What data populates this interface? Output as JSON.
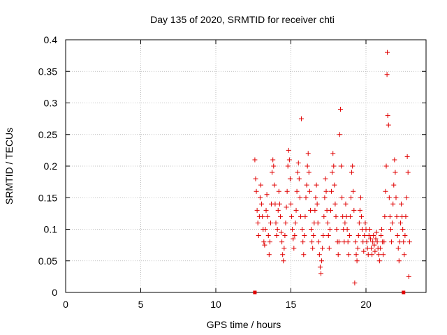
{
  "chart_data": {
    "type": "scatter",
    "title": "Day 135 of 2020, SRMTID for receiver chti",
    "xlabel": "GPS time / hours",
    "ylabel": "SRMTID / TECUs",
    "xlim": [
      0,
      24
    ],
    "ylim": [
      0,
      0.4
    ],
    "xticks": [
      0,
      5,
      10,
      15,
      20
    ],
    "xtick_labels": [
      "0",
      "5",
      "10",
      "15",
      "20"
    ],
    "yticks": [
      0,
      0.05,
      0.1,
      0.15,
      0.2,
      0.25,
      0.3,
      0.35,
      0.4
    ],
    "ytick_labels": [
      "0",
      "0.05",
      "0.1",
      "0.15",
      "0.2",
      "0.25",
      "0.3",
      "0.35",
      "0.4"
    ],
    "grid": true,
    "marker": "plus",
    "color": "#e00000",
    "series": [
      {
        "name": "SRMTID",
        "points": [
          [
            12.6,
            0.21
          ],
          [
            12.65,
            0.18
          ],
          [
            12.7,
            0.16
          ],
          [
            12.75,
            0.13
          ],
          [
            12.8,
            0.11
          ],
          [
            12.85,
            0.09
          ],
          [
            12.9,
            0.12
          ],
          [
            12.95,
            0.15
          ],
          [
            13.0,
            0.17
          ],
          [
            13.05,
            0.14
          ],
          [
            13.1,
            0.12
          ],
          [
            13.15,
            0.1
          ],
          [
            13.2,
            0.08
          ],
          [
            13.25,
            0.075
          ],
          [
            13.3,
            0.1
          ],
          [
            13.35,
            0.13
          ],
          [
            13.4,
            0.155
          ],
          [
            13.45,
            0.12
          ],
          [
            13.5,
            0.09
          ],
          [
            13.55,
            0.06
          ],
          [
            13.6,
            0.08
          ],
          [
            13.65,
            0.11
          ],
          [
            13.7,
            0.14
          ],
          [
            13.75,
            0.19
          ],
          [
            13.8,
            0.21
          ],
          [
            13.85,
            0.2
          ],
          [
            13.9,
            0.17
          ],
          [
            13.95,
            0.14
          ],
          [
            14.0,
            0.11
          ],
          [
            14.05,
            0.09
          ],
          [
            14.1,
            0.1
          ],
          [
            14.15,
            0.13
          ],
          [
            14.2,
            0.16
          ],
          [
            14.25,
            0.14
          ],
          [
            14.3,
            0.12
          ],
          [
            14.35,
            0.095
          ],
          [
            14.4,
            0.08
          ],
          [
            14.45,
            0.06
          ],
          [
            14.5,
            0.05
          ],
          [
            14.55,
            0.07
          ],
          [
            14.6,
            0.09
          ],
          [
            14.65,
            0.11
          ],
          [
            14.7,
            0.135
          ],
          [
            14.75,
            0.16
          ],
          [
            14.8,
            0.2
          ],
          [
            14.85,
            0.225
          ],
          [
            14.9,
            0.21
          ],
          [
            14.95,
            0.18
          ],
          [
            15.0,
            0.14
          ],
          [
            15.05,
            0.12
          ],
          [
            15.1,
            0.1
          ],
          [
            15.15,
            0.085
          ],
          [
            15.2,
            0.07
          ],
          [
            15.25,
            0.09
          ],
          [
            15.3,
            0.11
          ],
          [
            15.35,
            0.13
          ],
          [
            15.4,
            0.16
          ],
          [
            15.45,
            0.19
          ],
          [
            15.5,
            0.205
          ],
          [
            15.55,
            0.18
          ],
          [
            15.6,
            0.15
          ],
          [
            15.65,
            0.12
          ],
          [
            15.7,
            0.275
          ],
          [
            15.75,
            0.1
          ],
          [
            15.8,
            0.08
          ],
          [
            15.85,
            0.06
          ],
          [
            15.9,
            0.09
          ],
          [
            15.95,
            0.12
          ],
          [
            16.0,
            0.15
          ],
          [
            16.05,
            0.17
          ],
          [
            16.1,
            0.2
          ],
          [
            16.15,
            0.22
          ],
          [
            16.2,
            0.19
          ],
          [
            16.25,
            0.16
          ],
          [
            16.3,
            0.13
          ],
          [
            16.35,
            0.1
          ],
          [
            16.4,
            0.08
          ],
          [
            16.45,
            0.07
          ],
          [
            16.5,
            0.09
          ],
          [
            16.55,
            0.11
          ],
          [
            16.6,
            0.13
          ],
          [
            16.65,
            0.15
          ],
          [
            16.7,
            0.17
          ],
          [
            16.75,
            0.14
          ],
          [
            16.8,
            0.11
          ],
          [
            16.85,
            0.08
          ],
          [
            16.9,
            0.06
          ],
          [
            16.95,
            0.04
          ],
          [
            17.0,
            0.03
          ],
          [
            17.05,
            0.05
          ],
          [
            17.1,
            0.07
          ],
          [
            17.15,
            0.09
          ],
          [
            17.2,
            0.12
          ],
          [
            17.25,
            0.15
          ],
          [
            17.3,
            0.18
          ],
          [
            17.35,
            0.16
          ],
          [
            17.4,
            0.13
          ],
          [
            17.45,
            0.11
          ],
          [
            17.5,
            0.09
          ],
          [
            17.55,
            0.07
          ],
          [
            17.6,
            0.1
          ],
          [
            17.65,
            0.13
          ],
          [
            17.7,
            0.16
          ],
          [
            17.75,
            0.19
          ],
          [
            17.8,
            0.22
          ],
          [
            17.85,
            0.2
          ],
          [
            17.9,
            0.17
          ],
          [
            17.95,
            0.14
          ],
          [
            18.0,
            0.12
          ],
          [
            18.05,
            0.1
          ],
          [
            18.1,
            0.08
          ],
          [
            18.15,
            0.06
          ],
          [
            18.2,
            0.08
          ],
          [
            18.25,
            0.25
          ],
          [
            18.3,
            0.29
          ],
          [
            18.35,
            0.2
          ],
          [
            18.4,
            0.15
          ],
          [
            18.45,
            0.12
          ],
          [
            18.5,
            0.1
          ],
          [
            18.55,
            0.08
          ],
          [
            18.6,
            0.11
          ],
          [
            18.65,
            0.14
          ],
          [
            18.7,
            0.12
          ],
          [
            18.75,
            0.1
          ],
          [
            18.8,
            0.08
          ],
          [
            18.85,
            0.06
          ],
          [
            18.9,
            0.09
          ],
          [
            18.95,
            0.12
          ],
          [
            19.0,
            0.15
          ],
          [
            19.05,
            0.19
          ],
          [
            19.1,
            0.2
          ],
          [
            19.15,
            0.16
          ],
          [
            19.2,
            0.13
          ],
          [
            19.25,
            0.015
          ],
          [
            19.3,
            0.08
          ],
          [
            19.35,
            0.06
          ],
          [
            19.4,
            0.05
          ],
          [
            19.45,
            0.07
          ],
          [
            19.5,
            0.09
          ],
          [
            19.55,
            0.11
          ],
          [
            19.6,
            0.13
          ],
          [
            19.65,
            0.15
          ],
          [
            19.7,
            0.12
          ],
          [
            19.75,
            0.1
          ],
          [
            19.8,
            0.08
          ],
          [
            19.85,
            0.065
          ],
          [
            19.9,
            0.09
          ],
          [
            19.95,
            0.11
          ],
          [
            20.0,
            0.1
          ],
          [
            20.05,
            0.08
          ],
          [
            20.1,
            0.07
          ],
          [
            20.15,
            0.06
          ],
          [
            20.2,
            0.09
          ],
          [
            20.25,
            0.1
          ],
          [
            20.3,
            0.085
          ],
          [
            20.35,
            0.07
          ],
          [
            20.4,
            0.06
          ],
          [
            20.45,
            0.08
          ],
          [
            20.5,
            0.09
          ],
          [
            20.55,
            0.075
          ],
          [
            20.6,
            0.065
          ],
          [
            20.65,
            0.085
          ],
          [
            20.7,
            0.095
          ],
          [
            20.75,
            0.08
          ],
          [
            20.8,
            0.07
          ],
          [
            20.85,
            0.06
          ],
          [
            20.9,
            0.05
          ],
          [
            20.95,
            0.07
          ],
          [
            21.0,
            0.09
          ],
          [
            21.05,
            0.1
          ],
          [
            21.1,
            0.08
          ],
          [
            21.15,
            0.06
          ],
          [
            21.2,
            0.08
          ],
          [
            21.25,
            0.12
          ],
          [
            21.3,
            0.16
          ],
          [
            21.35,
            0.2
          ],
          [
            21.4,
            0.345
          ],
          [
            21.42,
            0.38
          ],
          [
            21.45,
            0.28
          ],
          [
            21.5,
            0.265
          ],
          [
            21.55,
            0.15
          ],
          [
            21.6,
            0.12
          ],
          [
            21.65,
            0.1
          ],
          [
            21.7,
            0.08
          ],
          [
            21.75,
            0.11
          ],
          [
            21.8,
            0.14
          ],
          [
            21.85,
            0.17
          ],
          [
            21.9,
            0.21
          ],
          [
            21.95,
            0.19
          ],
          [
            22.0,
            0.15
          ],
          [
            22.05,
            0.12
          ],
          [
            22.1,
            0.09
          ],
          [
            22.15,
            0.07
          ],
          [
            22.2,
            0.05
          ],
          [
            22.25,
            0.08
          ],
          [
            22.3,
            0.11
          ],
          [
            22.35,
            0.14
          ],
          [
            22.4,
            0.12
          ],
          [
            22.45,
            0.1
          ],
          [
            22.5,
            0.08
          ],
          [
            22.55,
            0.06
          ],
          [
            22.6,
            0.09
          ],
          [
            22.65,
            0.12
          ],
          [
            22.7,
            0.15
          ],
          [
            22.75,
            0.215
          ],
          [
            22.8,
            0.19
          ],
          [
            22.85,
            0.025
          ],
          [
            22.9,
            0.08
          ]
        ]
      }
    ],
    "coverage_markers": {
      "x": [
        12.6,
        22.5
      ],
      "y": 0
    }
  }
}
